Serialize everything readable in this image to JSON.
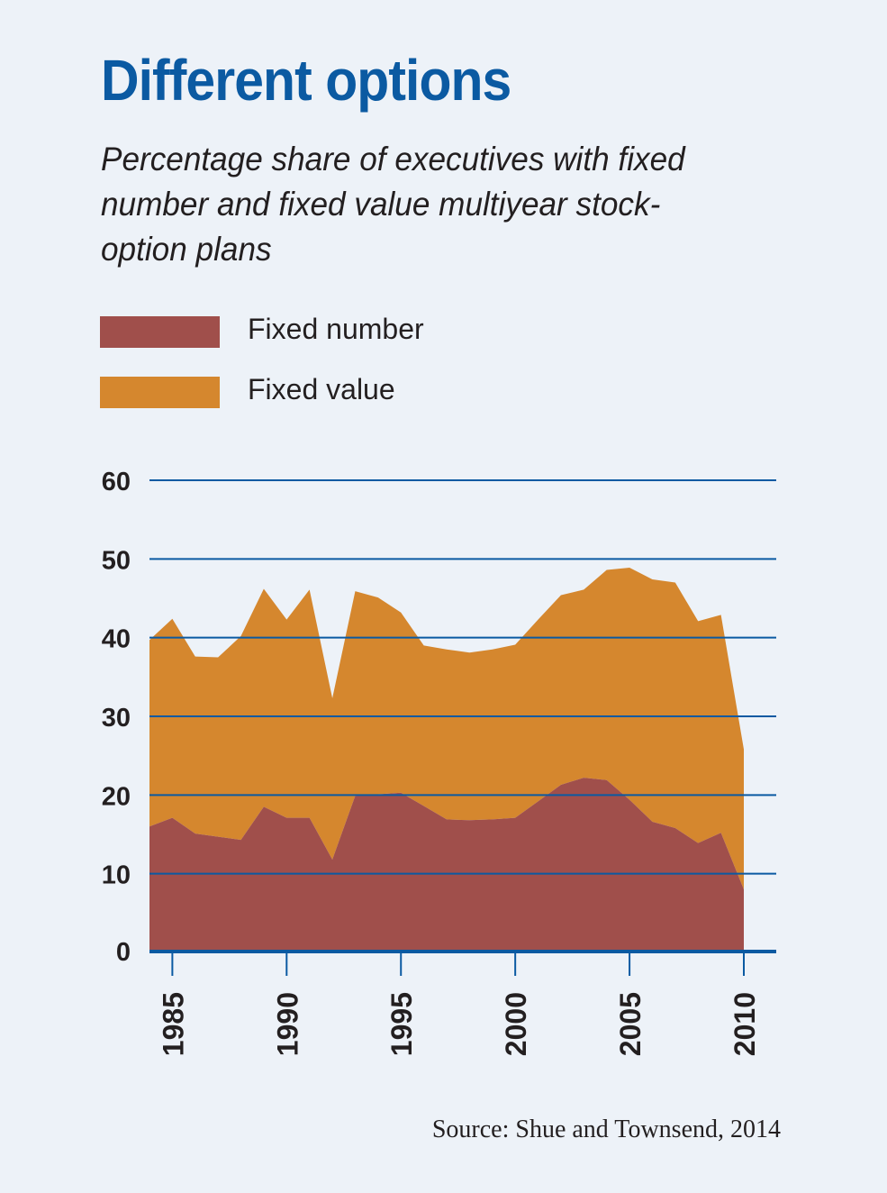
{
  "chart_data": {
    "type": "area",
    "stacked": true,
    "title": "Different options",
    "subtitle": "Percentage share of executives with fixed number and fixed value multiyear stock-option plans",
    "source": "Source: Shue and Townsend, 2014",
    "xlabel": "",
    "ylabel": "",
    "ylim": [
      0,
      60
    ],
    "yticks": [
      0,
      10,
      20,
      30,
      40,
      50,
      60
    ],
    "xticks": [
      1985,
      1990,
      1995,
      2000,
      2005,
      2010
    ],
    "xlim": [
      1984,
      2010
    ],
    "grid": true,
    "legend_placement": "top-left",
    "x": [
      1984,
      1985,
      1986,
      1987,
      1988,
      1989,
      1990,
      1991,
      1992,
      1993,
      1994,
      1995,
      1996,
      1997,
      1998,
      1999,
      2000,
      2001,
      2002,
      2003,
      2004,
      2005,
      2006,
      2007,
      2008,
      2009,
      2010
    ],
    "series": [
      {
        "name": "Fixed number",
        "color": "#a04f4b",
        "values": [
          16.0,
          17.1,
          15.1,
          14.7,
          14.3,
          18.5,
          17.1,
          17.1,
          11.8,
          19.9,
          20.1,
          20.3,
          18.6,
          16.9,
          16.8,
          16.9,
          17.1,
          19.2,
          21.3,
          22.2,
          21.9,
          19.4,
          16.6,
          15.8,
          13.9,
          15.2,
          8.0
        ]
      },
      {
        "name": "Fixed value",
        "color": "#d5872e",
        "values": [
          23.7,
          25.3,
          22.5,
          22.8,
          25.9,
          27.7,
          25.2,
          29.0,
          20.5,
          26.0,
          25.0,
          22.9,
          20.4,
          21.6,
          21.3,
          21.6,
          22.0,
          23.1,
          24.1,
          23.9,
          26.7,
          29.5,
          30.8,
          31.2,
          28.2,
          27.7,
          17.8
        ]
      }
    ],
    "colors": {
      "gridline": "#0b5aa2",
      "title": "#0b5aa2",
      "background": "#edf2f8"
    }
  }
}
